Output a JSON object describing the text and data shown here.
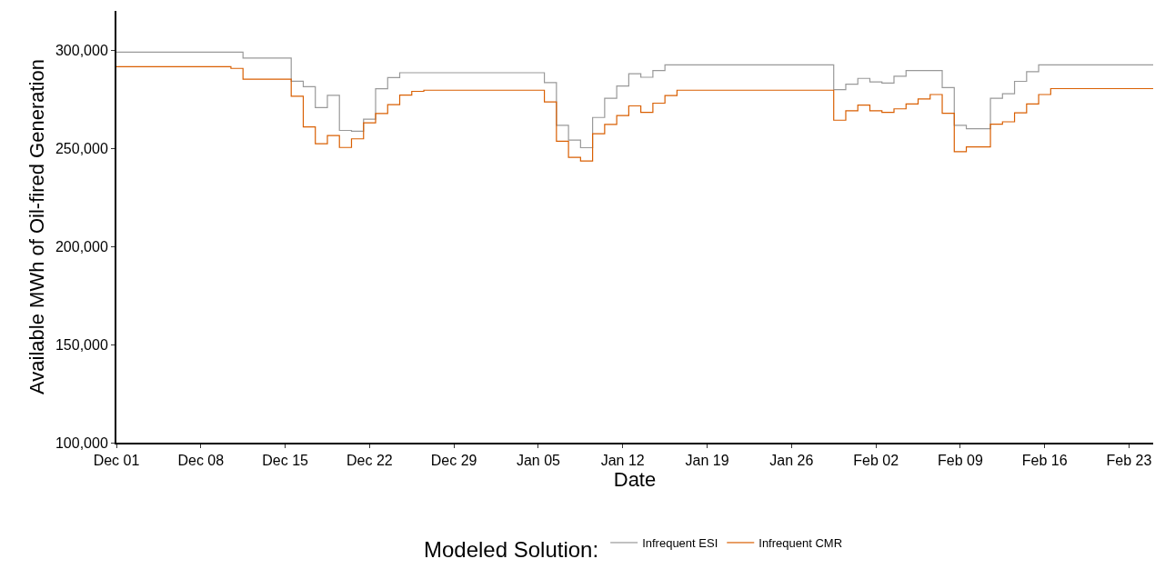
{
  "chart_data": {
    "type": "step",
    "xlabel": "Date",
    "ylabel": "Available MWh of Oil-fired Generation",
    "legend_title": "Modeled Solution:",
    "legend": "bottom",
    "grid": false,
    "marker": "none",
    "line_style": "solid",
    "categories": [
      "Dec 01",
      null,
      null,
      null,
      null,
      null,
      null,
      "Dec 08",
      null,
      null,
      null,
      null,
      null,
      null,
      "Dec 15",
      null,
      null,
      null,
      null,
      null,
      null,
      "Dec 22",
      null,
      null,
      null,
      null,
      null,
      null,
      "Dec 29",
      null,
      null,
      null,
      null,
      null,
      null,
      "Jan 05",
      null,
      null,
      null,
      null,
      null,
      null,
      "Jan 12",
      null,
      null,
      null,
      null,
      null,
      null,
      "Jan 19",
      null,
      null,
      null,
      null,
      null,
      null,
      "Jan 26",
      null,
      null,
      null,
      null,
      null,
      null,
      "Feb 02",
      null,
      null,
      null,
      null,
      null,
      null,
      "Feb 09",
      null,
      null,
      null,
      null,
      null,
      null,
      "Feb 16",
      null,
      null,
      null,
      null,
      null,
      null,
      "Feb 23",
      null,
      null
    ],
    "ylim": [
      100000,
      320000
    ],
    "yticks": [
      {
        "value": 100000,
        "label": "100,000"
      },
      {
        "value": 150000,
        "label": "150,000"
      },
      {
        "value": 200000,
        "label": "200,000"
      },
      {
        "value": 250000,
        "label": "250,000"
      },
      {
        "value": 300000,
        "label": "300,000"
      }
    ],
    "series": [
      {
        "name": "Infrequent ESI",
        "color": "#999999",
        "values": [
          299000,
          299000,
          299000,
          299000,
          299000,
          299000,
          299000,
          299000,
          299000,
          299000,
          299000,
          296000,
          296000,
          296000,
          296000,
          284200,
          281400,
          270700,
          277000,
          259100,
          258700,
          264800,
          280300,
          286000,
          288500,
          288500,
          288500,
          288500,
          288500,
          288500,
          288500,
          288500,
          288500,
          288500,
          288500,
          288500,
          283500,
          261700,
          254200,
          250300,
          265700,
          275500,
          281700,
          288000,
          286200,
          289600,
          292500,
          292500,
          292500,
          292500,
          292500,
          292500,
          292500,
          292500,
          292500,
          292500,
          292500,
          292500,
          292500,
          292500,
          279900,
          282700,
          285600,
          283800,
          283200,
          286700,
          289600,
          289600,
          289600,
          280900,
          261700,
          260000,
          260000,
          275500,
          277800,
          284100,
          289000,
          292500,
          292500,
          292500,
          292500,
          292500,
          292500,
          292500,
          292500,
          292500,
          292500
        ]
      },
      {
        "name": "Infrequent CMR",
        "color": "#d95f02",
        "values": [
          291600,
          291600,
          291600,
          291600,
          291600,
          291600,
          291600,
          291600,
          291600,
          291600,
          290700,
          285200,
          285200,
          285200,
          285200,
          276500,
          260900,
          252300,
          256500,
          250400,
          254800,
          263000,
          267700,
          272200,
          277100,
          279000,
          279600,
          279600,
          279600,
          279600,
          279600,
          279600,
          279600,
          279600,
          279600,
          279600,
          273600,
          253600,
          245400,
          243500,
          257400,
          262200,
          266700,
          271600,
          268300,
          273000,
          276900,
          279600,
          279600,
          279600,
          279600,
          279600,
          279600,
          279600,
          279600,
          279600,
          279600,
          279600,
          279600,
          279600,
          264300,
          269100,
          272000,
          269100,
          268300,
          270100,
          272600,
          275100,
          277400,
          267800,
          248300,
          250700,
          250700,
          262300,
          263500,
          268100,
          272600,
          277400,
          280400,
          280400,
          280400,
          280400,
          280400,
          280400,
          280400,
          280400,
          280400
        ]
      }
    ]
  }
}
